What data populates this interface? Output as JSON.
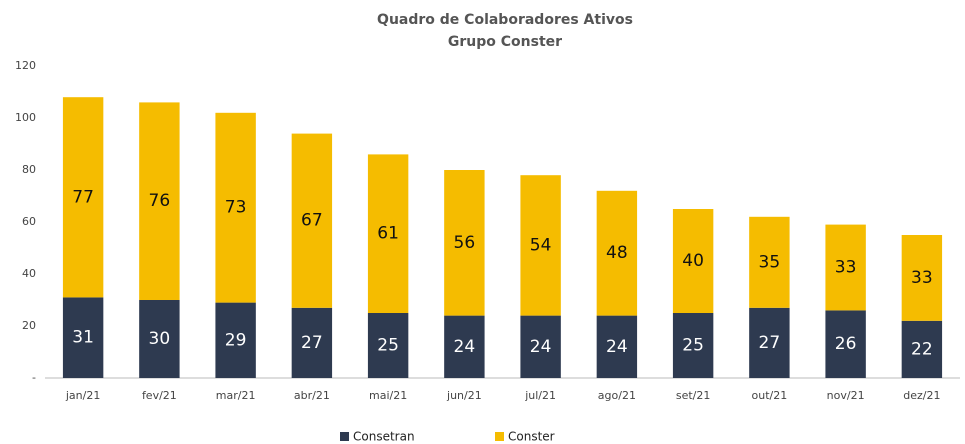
{
  "chart_data": {
    "type": "stacked_bar",
    "title": "Quadro de Colaboradores Ativos",
    "subtitle": "Grupo Conster",
    "categories": [
      "jan/21",
      "fev/21",
      "mar/21",
      "abr/21",
      "mai/21",
      "jun/21",
      "jul/21",
      "ago/21",
      "set/21",
      "out/21",
      "nov/21",
      "dez/21"
    ],
    "series": [
      {
        "name": "Consetran",
        "color": "#2e3a50",
        "values": [
          31,
          30,
          29,
          27,
          25,
          24,
          24,
          24,
          25,
          27,
          26,
          22
        ]
      },
      {
        "name": "Conster",
        "color": "#f5bc00",
        "values": [
          77,
          76,
          73,
          67,
          61,
          56,
          54,
          48,
          40,
          35,
          33,
          33
        ]
      }
    ],
    "ylim": [
      0,
      120
    ],
    "yticks": [
      {
        "value": 0,
        "label": "-"
      },
      20,
      40,
      60,
      80,
      100,
      120
    ],
    "grid": false,
    "legend": "bottom"
  }
}
